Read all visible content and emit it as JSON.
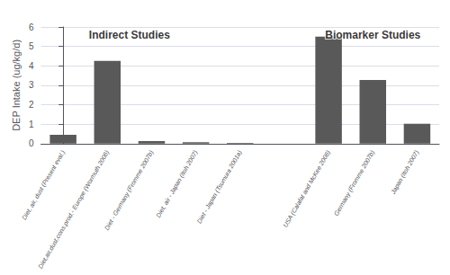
{
  "chart_data": {
    "type": "bar",
    "categories": [
      "Diet, air, dust (Present eval.)",
      "Diet,air,dust,cons.prod.- Europe (Wormuth 2006)",
      "Diet - Germany (Fromme 2007b)",
      "Diet, air - Japan (Itoh 2007)",
      "Diet - Japan (Tsumura 2001a)",
      null,
      "USA (Calafat and McKee 2006)",
      "Germany (Fromme 2007b)",
      "Japan (Itoh 2007)"
    ],
    "values": [
      0.45,
      4.25,
      0.13,
      0.07,
      0.03,
      null,
      5.5,
      3.27,
      1.02
    ],
    "color": "#595959",
    "ylabel": "DEP Intake (ug/kg/d)",
    "ylim": [
      0,
      6
    ],
    "yticks": [
      0,
      1,
      2,
      3,
      4,
      5,
      6
    ],
    "grid": true,
    "annotations": [
      {
        "text": "Indirect Studies",
        "x": 1.5,
        "y": 5.85
      },
      {
        "text": "Biomarker Studies",
        "x": 7.0,
        "y": 5.85
      }
    ]
  }
}
